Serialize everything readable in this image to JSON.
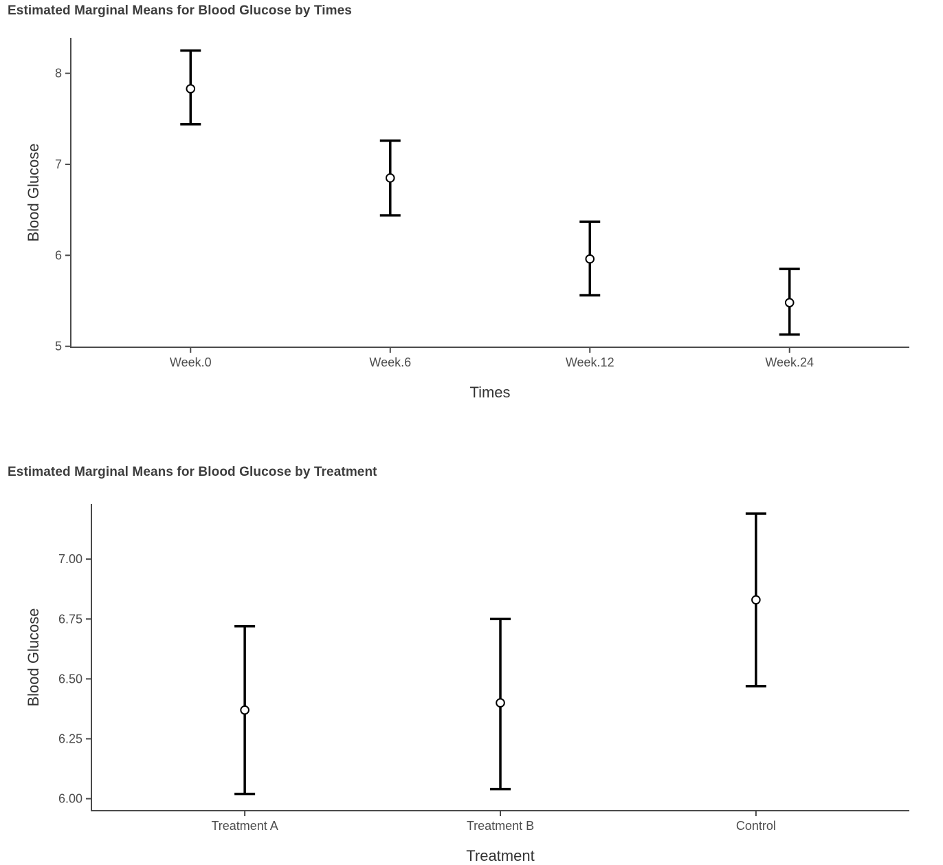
{
  "figure": {
    "background": "#ffffff"
  },
  "colors": {
    "errorbar": "#000000",
    "point_fill": "#ffffff",
    "point_stroke": "#000000",
    "axis_line": "#4a4a4a",
    "tick_mark": "#4a4a4a",
    "tick_label": "#4d4d4d",
    "axis_title": "#333333",
    "plot_title": "#3d3d3d"
  },
  "chart_data": [
    {
      "type": "errorbar",
      "title": "Estimated Marginal Means for Blood Glucose by Times",
      "xlabel": "Times",
      "ylabel": "Blood Glucose",
      "categories": [
        "Week.0",
        "Week.6",
        "Week.12",
        "Week.24"
      ],
      "series": [
        {
          "name": "estimated_marginal_mean",
          "means": [
            7.83,
            6.85,
            5.96,
            5.48
          ],
          "ci_low": [
            7.44,
            6.44,
            5.56,
            5.13
          ],
          "ci_high": [
            8.25,
            7.26,
            6.37,
            5.85
          ]
        }
      ],
      "yticks": [
        5,
        6,
        7,
        8
      ],
      "ytick_labels": [
        "5",
        "6",
        "7",
        "8"
      ],
      "ylim": [
        4.99,
        8.39
      ],
      "grid": "off",
      "legend": "none",
      "point_marker": "open-circle"
    },
    {
      "type": "errorbar",
      "title": "Estimated Marginal Means for Blood Glucose by Treatment",
      "xlabel": "Treatment",
      "ylabel": "Blood Glucose",
      "categories": [
        "Treatment A",
        "Treatment B",
        "Control"
      ],
      "series": [
        {
          "name": "estimated_marginal_mean",
          "means": [
            6.37,
            6.4,
            6.83
          ],
          "ci_low": [
            6.02,
            6.04,
            6.47
          ],
          "ci_high": [
            6.72,
            6.75,
            7.19
          ]
        }
      ],
      "yticks": [
        6.0,
        6.25,
        6.5,
        6.75,
        7.0
      ],
      "ytick_labels": [
        "6.00",
        "6.25",
        "6.50",
        "6.75",
        "7.00"
      ],
      "ylim": [
        5.95,
        7.23
      ],
      "grid": "off",
      "legend": "none",
      "point_marker": "open-circle"
    }
  ]
}
